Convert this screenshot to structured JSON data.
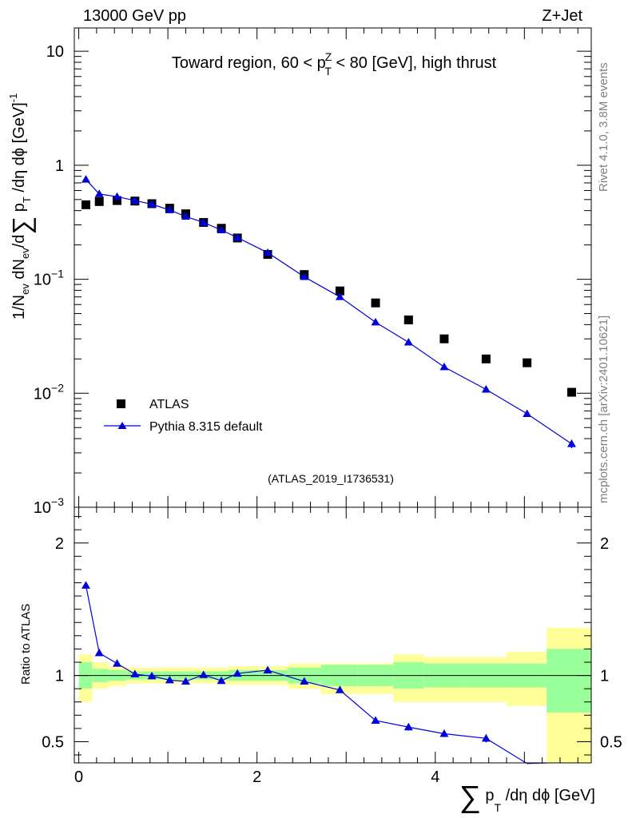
{
  "header": {
    "left_label": "13000 GeV pp",
    "right_label": "Z+Jet"
  },
  "side_labels": {
    "rivet": "Rivet 4.1.0,  3.8M events",
    "mcplots": "mcplots.cern.ch [arXiv:2401.10621]"
  },
  "colors": {
    "data": "#000000",
    "mc": "#0000dd",
    "band_inner": "#99ff99",
    "band_outer": "#ffff99",
    "watermark": "#a0a0a0"
  },
  "chart_data": [
    {
      "type": "scatter",
      "panel": "main",
      "title_parts": {
        "pre": "Toward region, 60 < p",
        "sup": "Z",
        "sub": "T",
        "post": " < 80 [GeV], high thrust"
      },
      "ylabel_parts": {
        "a": "1/N",
        "a_sub": "ev",
        "b": " dN",
        "b_sub": "ev",
        "c": "/d",
        "sigma": "∑",
        "d": " p",
        "d_sub": "T",
        "e": " /dη dϕ  [GeV]",
        "e_sup": "-1"
      },
      "yscale": "log",
      "ylim": [
        0.001,
        16
      ],
      "xlim": [
        -0.05,
        5.75
      ],
      "y_ticks": [
        {
          "value": 10,
          "label": "10"
        },
        {
          "value": 1,
          "label": "1"
        },
        {
          "value": 0.1,
          "base": "10",
          "exp": "−1"
        },
        {
          "value": 0.01,
          "base": "10",
          "exp": "−2"
        },
        {
          "value": 0.001,
          "base": "10",
          "exp": "−3"
        }
      ],
      "watermark": "(ATLAS_2019_I1736531)",
      "legend": {
        "position": "lower-left",
        "entries": [
          "ATLAS",
          "Pythia 8.315 default"
        ]
      },
      "series": [
        {
          "name": "ATLAS",
          "marker": "square",
          "x": [
            0.08,
            0.23,
            0.43,
            0.63,
            0.82,
            1.02,
            1.2,
            1.4,
            1.6,
            1.78,
            2.12,
            2.53,
            2.93,
            3.33,
            3.7,
            4.1,
            4.57,
            5.03,
            5.53
          ],
          "y": [
            0.45,
            0.48,
            0.49,
            0.485,
            0.46,
            0.42,
            0.375,
            0.315,
            0.28,
            0.23,
            0.165,
            0.11,
            0.079,
            0.062,
            0.044,
            0.03,
            0.02,
            0.0185,
            0.0102
          ]
        },
        {
          "name": "Pythia 8.315 default",
          "marker": "triangle",
          "x": [
            0.08,
            0.23,
            0.43,
            0.63,
            0.82,
            1.02,
            1.2,
            1.4,
            1.6,
            1.78,
            2.12,
            2.53,
            2.93,
            3.33,
            3.7,
            4.1,
            4.57,
            5.03,
            5.53
          ],
          "y": [
            0.75,
            0.56,
            0.53,
            0.49,
            0.455,
            0.405,
            0.355,
            0.315,
            0.27,
            0.232,
            0.171,
            0.105,
            0.07,
            0.042,
            0.028,
            0.017,
            0.0108,
            0.0066,
            0.0036
          ],
          "yerr": [
            0,
            0,
            0,
            0,
            0,
            0,
            0,
            0,
            0,
            0,
            0,
            0,
            0,
            0,
            0,
            0,
            0,
            0.0004,
            0.0003
          ]
        }
      ]
    },
    {
      "type": "line",
      "panel": "ratio",
      "ylabel": "Ratio to ATLAS",
      "xlabel_parts": {
        "sigma": "∑",
        "p": " p",
        "sub": "T",
        "rest": " /dη dϕ [GeV]"
      },
      "ylim": [
        0.34,
        2.27
      ],
      "xlim": [
        -0.05,
        5.75
      ],
      "y_ticks": [
        {
          "value": 2,
          "label": "2"
        },
        {
          "value": 1,
          "label": "1"
        },
        {
          "value": 0.5,
          "label": "0.5"
        }
      ],
      "x_ticks": [
        {
          "value": 0,
          "label": "0"
        },
        {
          "value": 2,
          "label": "2"
        },
        {
          "value": 4,
          "label": "4"
        }
      ],
      "bands": {
        "edges": [
          0,
          0.15,
          0.33,
          0.53,
          0.72,
          0.92,
          1.1,
          1.3,
          1.5,
          1.68,
          1.88,
          2.35,
          2.72,
          3.13,
          3.53,
          3.87,
          4.33,
          4.8,
          5.25,
          5.75
        ],
        "inner_lo": [
          0.9,
          0.95,
          0.96,
          0.97,
          0.97,
          0.97,
          0.97,
          0.97,
          0.97,
          0.96,
          0.96,
          0.94,
          0.92,
          0.92,
          0.9,
          0.91,
          0.91,
          0.91,
          0.72
        ],
        "inner_hi": [
          1.1,
          1.05,
          1.04,
          1.03,
          1.03,
          1.03,
          1.03,
          1.03,
          1.03,
          1.04,
          1.04,
          1.06,
          1.08,
          1.08,
          1.1,
          1.09,
          1.09,
          1.09,
          1.2
        ],
        "outer_lo": [
          0.8,
          0.9,
          0.92,
          0.94,
          0.94,
          0.94,
          0.94,
          0.94,
          0.94,
          0.93,
          0.93,
          0.9,
          0.86,
          0.86,
          0.8,
          0.8,
          0.8,
          0.77,
          0.34
        ],
        "outer_hi": [
          1.16,
          1.1,
          1.07,
          1.06,
          1.06,
          1.06,
          1.06,
          1.06,
          1.06,
          1.07,
          1.07,
          1.09,
          1.09,
          1.09,
          1.16,
          1.14,
          1.14,
          1.18,
          1.36
        ]
      },
      "series": [
        {
          "name": "Pythia 8.315 default",
          "x": [
            0.08,
            0.23,
            0.43,
            0.63,
            0.82,
            1.02,
            1.2,
            1.4,
            1.6,
            1.78,
            2.12,
            2.53,
            2.93,
            3.33,
            3.7,
            4.1,
            4.57,
            5.03
          ],
          "y": [
            1.68,
            1.17,
            1.09,
            1.01,
            0.995,
            0.965,
            0.955,
            1.005,
            0.96,
            1.015,
            1.04,
            0.955,
            0.89,
            0.66,
            0.61,
            0.56,
            0.525,
            0.335
          ],
          "yerr": [
            0,
            0,
            0,
            0,
            0,
            0,
            0,
            0,
            0,
            0,
            0,
            0,
            0,
            0,
            0.025,
            0.025,
            0.03,
            0
          ]
        }
      ]
    }
  ]
}
